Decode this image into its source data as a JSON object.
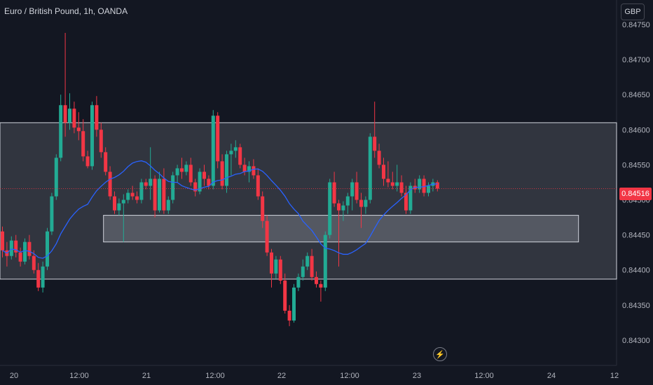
{
  "header": {
    "title": "Euro / British Pound, 1h, OANDA",
    "currency": "GBP"
  },
  "last_price": "0.84516",
  "colors": {
    "up": "#22ab94",
    "down": "#f23645",
    "ma": "#2962ff",
    "zone": "#787b86",
    "background": "#131722"
  },
  "icons": {
    "alert": "lightning-bolt-icon"
  },
  "chart_data": {
    "type": "candlestick",
    "title": "Euro / British Pound, 1h, OANDA",
    "ylim": [
      0.8428,
      0.8475
    ],
    "y_ticks": [
      "0.84750",
      "0.84700",
      "0.84650",
      "0.84600",
      "0.84550",
      "0.84500",
      "0.84450",
      "0.84400",
      "0.84350",
      "0.84300"
    ],
    "x_ticks": [
      "20",
      "12:00",
      "21",
      "12:00",
      "22",
      "12:00",
      "23",
      "12:00",
      "24",
      "12"
    ],
    "zones": [
      {
        "top": 0.8461,
        "bottom": 0.84387,
        "from": 0,
        "to": 138
      },
      {
        "top": 0.84478,
        "bottom": 0.8444,
        "from": 23,
        "to": 128
      }
    ],
    "candles": [
      [
        0.84455,
        0.84462,
        0.84418,
        0.84428
      ],
      [
        0.84428,
        0.8444,
        0.84405,
        0.8442
      ],
      [
        0.8442,
        0.84448,
        0.84415,
        0.84442
      ],
      [
        0.84442,
        0.8445,
        0.84418,
        0.84425
      ],
      [
        0.84425,
        0.84432,
        0.84405,
        0.84412
      ],
      [
        0.84412,
        0.84445,
        0.84408,
        0.8444
      ],
      [
        0.8444,
        0.8445,
        0.84415,
        0.8442
      ],
      [
        0.8442,
        0.84428,
        0.84395,
        0.844
      ],
      [
        0.844,
        0.8441,
        0.8437,
        0.84375
      ],
      [
        0.84375,
        0.84412,
        0.84368,
        0.84405
      ],
      [
        0.84405,
        0.8446,
        0.844,
        0.84455
      ],
      [
        0.84455,
        0.8451,
        0.8445,
        0.84505
      ],
      [
        0.84505,
        0.84565,
        0.845,
        0.8456
      ],
      [
        0.8456,
        0.8465,
        0.84555,
        0.84635
      ],
      [
        0.84635,
        0.84738,
        0.8459,
        0.8461
      ],
      [
        0.8461,
        0.84652,
        0.846,
        0.8463
      ],
      [
        0.8463,
        0.8464,
        0.84595,
        0.84603
      ],
      [
        0.84603,
        0.84625,
        0.84585,
        0.84598
      ],
      [
        0.84598,
        0.84615,
        0.84555,
        0.84562
      ],
      [
        0.84562,
        0.8457,
        0.84545,
        0.84548
      ],
      [
        0.84548,
        0.8464,
        0.84543,
        0.84635
      ],
      [
        0.84635,
        0.84648,
        0.8459,
        0.846
      ],
      [
        0.846,
        0.8461,
        0.8456,
        0.84568
      ],
      [
        0.84568,
        0.84575,
        0.84535,
        0.8454
      ],
      [
        0.8454,
        0.84548,
        0.845,
        0.84505
      ],
      [
        0.84505,
        0.84512,
        0.8448,
        0.84485
      ],
      [
        0.84485,
        0.84502,
        0.84478,
        0.84495
      ],
      [
        0.84495,
        0.84508,
        0.8444,
        0.845
      ],
      [
        0.845,
        0.84515,
        0.84495,
        0.8451
      ],
      [
        0.8451,
        0.8452,
        0.845,
        0.84505
      ],
      [
        0.84505,
        0.84512,
        0.84495,
        0.845
      ],
      [
        0.845,
        0.8453,
        0.84495,
        0.84525
      ],
      [
        0.84525,
        0.8453,
        0.84515,
        0.8452
      ],
      [
        0.8452,
        0.84575,
        0.845,
        0.8453
      ],
      [
        0.8453,
        0.84535,
        0.84475,
        0.84485
      ],
      [
        0.84485,
        0.8454,
        0.84482,
        0.8453
      ],
      [
        0.8453,
        0.84545,
        0.8448,
        0.84485
      ],
      [
        0.84485,
        0.84505,
        0.8448,
        0.845
      ],
      [
        0.845,
        0.8454,
        0.84495,
        0.84535
      ],
      [
        0.84535,
        0.8455,
        0.84525,
        0.84545
      ],
      [
        0.84545,
        0.8456,
        0.8453,
        0.8454
      ],
      [
        0.8454,
        0.84555,
        0.84535,
        0.8455
      ],
      [
        0.8455,
        0.8456,
        0.8452,
        0.84525
      ],
      [
        0.84525,
        0.8453,
        0.84505,
        0.84512
      ],
      [
        0.84512,
        0.84545,
        0.84508,
        0.8454
      ],
      [
        0.8454,
        0.8455,
        0.8452,
        0.8453
      ],
      [
        0.8453,
        0.84535,
        0.84515,
        0.8452
      ],
      [
        0.8452,
        0.84628,
        0.84515,
        0.8462
      ],
      [
        0.8462,
        0.84625,
        0.84545,
        0.84555
      ],
      [
        0.84555,
        0.84565,
        0.84515,
        0.8452
      ],
      [
        0.8452,
        0.8457,
        0.8451,
        0.84565
      ],
      [
        0.84565,
        0.8458,
        0.84535,
        0.8457
      ],
      [
        0.8457,
        0.84585,
        0.8456,
        0.84575
      ],
      [
        0.84575,
        0.8458,
        0.84545,
        0.8455
      ],
      [
        0.8455,
        0.8456,
        0.84535,
        0.8454
      ],
      [
        0.8454,
        0.84555,
        0.84525,
        0.84548
      ],
      [
        0.84548,
        0.84558,
        0.8453,
        0.84535
      ],
      [
        0.84535,
        0.84545,
        0.845,
        0.84505
      ],
      [
        0.84505,
        0.84512,
        0.8446,
        0.8447
      ],
      [
        0.8447,
        0.84478,
        0.8442,
        0.84425
      ],
      [
        0.84425,
        0.8443,
        0.84375,
        0.84395
      ],
      [
        0.84395,
        0.8442,
        0.84388,
        0.84415
      ],
      [
        0.84415,
        0.8442,
        0.8438,
        0.84385
      ],
      [
        0.84385,
        0.84395,
        0.84338,
        0.84342
      ],
      [
        0.84342,
        0.8435,
        0.8432,
        0.84328
      ],
      [
        0.84328,
        0.8438,
        0.84325,
        0.84375
      ],
      [
        0.84375,
        0.84395,
        0.8437,
        0.8439
      ],
      [
        0.8439,
        0.84415,
        0.84385,
        0.84405
      ],
      [
        0.84405,
        0.84425,
        0.844,
        0.8442
      ],
      [
        0.8442,
        0.8443,
        0.84385,
        0.8439
      ],
      [
        0.8439,
        0.84398,
        0.84375,
        0.8438
      ],
      [
        0.8438,
        0.84385,
        0.84355,
        0.84375
      ],
      [
        0.84375,
        0.84455,
        0.8437,
        0.8445
      ],
      [
        0.8445,
        0.8453,
        0.84445,
        0.84525
      ],
      [
        0.84525,
        0.8454,
        0.8449,
        0.84495
      ],
      [
        0.84495,
        0.845,
        0.84405,
        0.84485
      ],
      [
        0.84485,
        0.84498,
        0.8447,
        0.84492
      ],
      [
        0.84492,
        0.8451,
        0.8448,
        0.84505
      ],
      [
        0.84505,
        0.8453,
        0.84485,
        0.84525
      ],
      [
        0.84525,
        0.8454,
        0.84495,
        0.845
      ],
      [
        0.845,
        0.8451,
        0.8446,
        0.8449
      ],
      [
        0.8449,
        0.84505,
        0.8448,
        0.845
      ],
      [
        0.845,
        0.84595,
        0.84495,
        0.8459
      ],
      [
        0.8459,
        0.8464,
        0.8456,
        0.8457
      ],
      [
        0.8457,
        0.8458,
        0.84545,
        0.8455
      ],
      [
        0.8455,
        0.8456,
        0.8452,
        0.8453
      ],
      [
        0.8453,
        0.84555,
        0.84518,
        0.84525
      ],
      [
        0.84525,
        0.8454,
        0.84515,
        0.8452
      ],
      [
        0.8452,
        0.8455,
        0.84512,
        0.84525
      ],
      [
        0.84525,
        0.84535,
        0.84505,
        0.8451
      ],
      [
        0.8451,
        0.8452,
        0.8448,
        0.84485
      ],
      [
        0.84485,
        0.84525,
        0.8448,
        0.8452
      ],
      [
        0.8452,
        0.8453,
        0.8451,
        0.84515
      ],
      [
        0.84515,
        0.84535,
        0.8451,
        0.8453
      ],
      [
        0.8453,
        0.84535,
        0.84505,
        0.8451
      ],
      [
        0.8451,
        0.84525,
        0.84505,
        0.8452
      ],
      [
        0.8452,
        0.8453,
        0.84512,
        0.84525
      ],
      [
        0.84525,
        0.84528,
        0.84512,
        0.84516
      ]
    ]
  }
}
